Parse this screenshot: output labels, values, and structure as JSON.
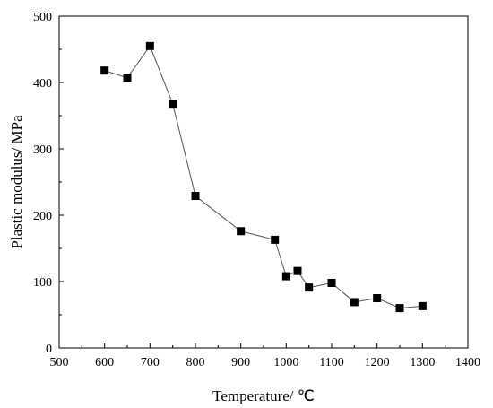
{
  "chart_data": {
    "type": "line",
    "xlabel": "Temperature/ ℃",
    "ylabel": "Plastic modulus/ MPa",
    "xlim": [
      500,
      1400
    ],
    "ylim": [
      0,
      500
    ],
    "xticks": [
      500,
      600,
      700,
      800,
      900,
      1000,
      1100,
      1200,
      1300,
      1400
    ],
    "yticks": [
      0,
      100,
      200,
      300,
      400,
      500
    ],
    "grid": false,
    "series": [
      {
        "x": [
          600,
          650,
          700,
          750,
          800,
          900,
          975,
          1000,
          1025,
          1050,
          1100,
          1150,
          1200,
          1250,
          1300
        ],
        "y": [
          418,
          407,
          455,
          368,
          229,
          176,
          163,
          108,
          116,
          91,
          98,
          69,
          75,
          60,
          63
        ],
        "marker": "square",
        "color": "#000000"
      }
    ]
  }
}
